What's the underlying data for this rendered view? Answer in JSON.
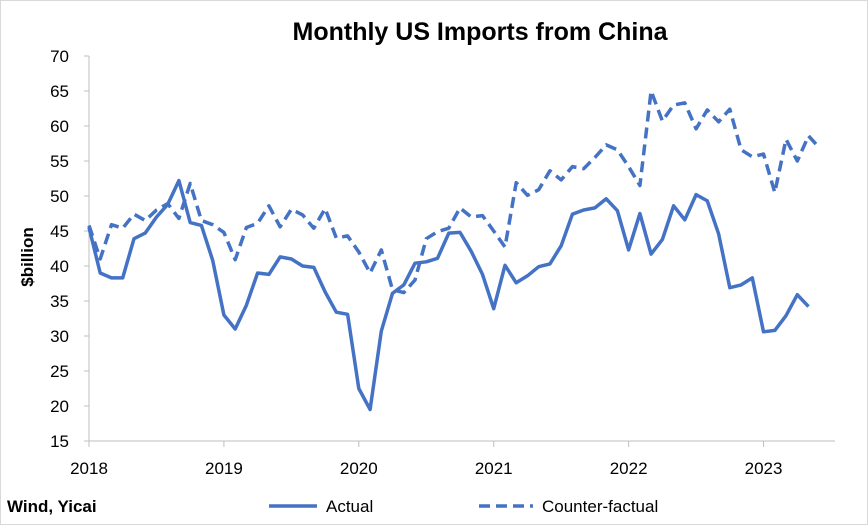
{
  "chart_data": {
    "type": "line",
    "title": "Monthly US Imports from China",
    "ylabel": "$billion",
    "xlabel": "",
    "ylim": [
      15,
      70
    ],
    "yticks": [
      15,
      20,
      25,
      30,
      35,
      40,
      45,
      50,
      55,
      60,
      65,
      70
    ],
    "xrange": [
      2018,
      2023.5
    ],
    "xticks": [
      "2018",
      "2019",
      "2020",
      "2021",
      "2022",
      "2023"
    ],
    "grid": false,
    "legend_position": "bottom",
    "source": "Wind, Yicai",
    "colors": {
      "actual": "#4472c4",
      "counterfactual": "#4472c4"
    },
    "series": [
      {
        "name": "Actual",
        "style": "solid",
        "start": "2018-01",
        "values": [
          45.5,
          39.0,
          38.3,
          38.3,
          43.9,
          44.7,
          47.0,
          48.8,
          52.2,
          46.2,
          45.8,
          40.8,
          33.0,
          31.0,
          34.4,
          39.0,
          38.8,
          41.3,
          41.0,
          40.0,
          39.8,
          36.3,
          33.4,
          33.1,
          22.5,
          19.5,
          30.7,
          36.1,
          37.3,
          40.4,
          40.6,
          41.1,
          44.7,
          44.8,
          42.1,
          38.8,
          33.9,
          40.1,
          37.6,
          38.6,
          39.9,
          40.3,
          42.9,
          47.4,
          48.0,
          48.3,
          49.6,
          47.9,
          42.3,
          47.5,
          41.7,
          43.8,
          48.6,
          46.6,
          50.2,
          49.3,
          44.6,
          36.9,
          37.3,
          38.3,
          30.6,
          30.8,
          32.9,
          35.9,
          34.2
        ]
      },
      {
        "name": "Counter-factual",
        "style": "dashed",
        "start": "2018-01",
        "values": [
          45.8,
          41.0,
          45.9,
          45.4,
          47.4,
          46.5,
          48.0,
          48.9,
          46.8,
          51.8,
          46.5,
          45.9,
          44.8,
          40.9,
          45.5,
          46.1,
          48.6,
          45.6,
          48.1,
          47.3,
          45.4,
          48.2,
          44.0,
          44.3,
          42.0,
          39.0,
          42.3,
          36.6,
          36.2,
          38.0,
          43.9,
          44.9,
          45.4,
          48.3,
          47.0,
          47.2,
          45.0,
          42.7,
          51.9,
          50.1,
          50.9,
          53.6,
          52.3,
          54.2,
          53.9,
          55.5,
          57.3,
          56.6,
          54.2,
          51.5,
          65.0,
          60.7,
          63.0,
          63.3,
          59.6,
          62.3,
          60.6,
          62.4,
          56.6,
          55.6,
          56.0,
          50.5,
          58.1,
          55.0,
          58.6,
          56.8
        ]
      }
    ]
  }
}
